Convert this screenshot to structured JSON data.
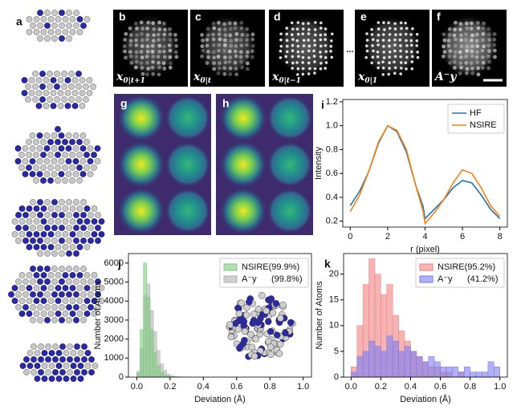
{
  "panel_labels": [
    "a",
    "b",
    "c",
    "d",
    "e",
    "f",
    "g",
    "h",
    "i",
    "j",
    "k"
  ],
  "image_captions": [
    {
      "base": "x",
      "sub": "0|t+1"
    },
    {
      "base": "x",
      "sub": "0|t"
    },
    {
      "base": "x",
      "sub": "0|t−1"
    },
    {
      "base": "x",
      "sub": "0|1"
    },
    {
      "base": "A⁻y"
    }
  ],
  "ellipsis": "...",
  "chart_data": [
    {
      "type": "line",
      "xlabel": "r (pixel)",
      "ylabel": "Intensity",
      "x": [
        0,
        0.5,
        1,
        1.5,
        2,
        2.5,
        3,
        3.5,
        3.9,
        4,
        4.5,
        5,
        5.5,
        6,
        6.5,
        7,
        7.5,
        8
      ],
      "series": [
        {
          "name": "HF",
          "color": "#1f77b4",
          "values": [
            0.33,
            0.45,
            0.62,
            0.85,
            1.0,
            0.95,
            0.78,
            0.5,
            0.32,
            0.22,
            0.3,
            0.38,
            0.48,
            0.54,
            0.52,
            0.42,
            0.3,
            0.22
          ]
        },
        {
          "name": "NSIRE",
          "color": "#ff7f0e",
          "values": [
            0.28,
            0.42,
            0.62,
            0.86,
            1.0,
            0.96,
            0.8,
            0.5,
            0.28,
            0.18,
            0.27,
            0.38,
            0.52,
            0.63,
            0.6,
            0.48,
            0.33,
            0.24
          ]
        }
      ],
      "xlim": [
        -0.4,
        8.4
      ],
      "ylim": [
        0.15,
        1.22
      ],
      "xticks": [
        0,
        2,
        4,
        6,
        8
      ],
      "yticks": [
        0.2,
        0.4,
        0.6,
        0.8,
        {
          "value": 1,
          "label": "1.0"
        },
        1.2
      ],
      "legend": "upper right"
    },
    {
      "type": "histogram",
      "xlabel": "Deviation (Å)",
      "ylabel": "Number of Atoms",
      "bins": [
        0,
        0.02,
        0.04,
        0.06,
        0.08,
        0.1,
        0.12,
        0.14,
        0.16,
        0.18,
        0.2,
        0.22,
        0.24,
        0.26,
        0.28,
        0.3
      ],
      "series": [
        {
          "name": "A⁻y      (99.8%)",
          "color": "#b0b0b0",
          "values": [
            200,
            1500,
            4300,
            4900,
            3500,
            2400,
            1400,
            700,
            350,
            150,
            80,
            40,
            20,
            10,
            5
          ]
        },
        {
          "name": "NSIRE(99.9%)",
          "color": "#7fc97f",
          "values": [
            300,
            2500,
            6000,
            4200,
            2500,
            1300,
            600,
            250,
            100,
            50,
            20,
            10,
            5,
            0,
            0
          ]
        }
      ],
      "xlim": [
        -0.05,
        1.05
      ],
      "ylim": [
        0,
        6500
      ],
      "xticks": [
        {
          "value": 0,
          "label": "0.0"
        },
        0.2,
        0.4,
        0.6,
        0.8,
        {
          "value": 1,
          "label": "1.0"
        }
      ],
      "yticks": [
        0,
        1000,
        2000,
        3000,
        4000,
        5000,
        6000
      ],
      "legend": "upper right"
    },
    {
      "type": "histogram",
      "xlabel": "Deviation (Å)",
      "ylabel": "Number of Atoms",
      "bins": [
        0,
        0.04,
        0.08,
        0.12,
        0.16,
        0.2,
        0.24,
        0.28,
        0.32,
        0.36,
        0.4,
        0.44,
        0.48,
        0.52,
        0.56,
        0.6,
        0.64,
        0.68,
        0.72,
        0.76,
        0.8,
        0.84,
        0.88,
        0.92,
        0.96,
        1.0
      ],
      "series": [
        {
          "name": "NSIRE(95.2%)",
          "color": "#f08080",
          "values": [
            2,
            10,
            18,
            23,
            20,
            16,
            18,
            12,
            9,
            7,
            5,
            4,
            3,
            2,
            2,
            1,
            1,
            0,
            1,
            0,
            0,
            0,
            0,
            0,
            0
          ]
        },
        {
          "name": "A⁻y      (41.2%)",
          "color": "#7b7bf0",
          "values": [
            1,
            4,
            5,
            7,
            6,
            5,
            8,
            7,
            5,
            6,
            5,
            4,
            3,
            4,
            3,
            2,
            2,
            2,
            1,
            2,
            1,
            1,
            1,
            3,
            2
          ]
        }
      ],
      "xlim": [
        -0.05,
        1.05
      ],
      "ylim": [
        0,
        24
      ],
      "xticks": [
        {
          "value": 0,
          "label": "0.0"
        },
        0.2,
        0.4,
        0.6,
        0.8,
        {
          "value": 1,
          "label": "1.0"
        }
      ],
      "yticks": [
        0,
        5,
        10,
        15,
        20
      ],
      "legend": "upper right"
    }
  ]
}
